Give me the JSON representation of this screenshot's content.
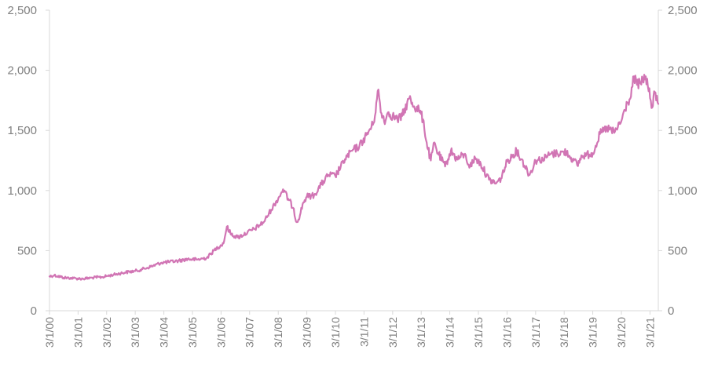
{
  "chart_data": {
    "type": "line",
    "title": "",
    "xlabel": "",
    "ylabel": "",
    "ylim": [
      0,
      2500
    ],
    "grid": false,
    "legend": "none",
    "y_ticks": [
      0,
      500,
      1000,
      1500,
      2000,
      2500
    ],
    "y_tick_labels": [
      "0",
      "500",
      "1,000",
      "1,500",
      "2,000",
      "2,500"
    ],
    "x_ticks": [
      "3/1/00",
      "3/1/01",
      "3/1/02",
      "3/1/03",
      "3/1/04",
      "3/1/05",
      "3/1/06",
      "3/1/07",
      "3/1/08",
      "3/1/09",
      "3/1/10",
      "3/1/11",
      "3/1/12",
      "3/1/13",
      "3/1/14",
      "3/1/15",
      "3/1/16",
      "3/1/17",
      "3/1/18",
      "3/1/19",
      "3/1/20",
      "3/1/21"
    ],
    "xlim": [
      "2000-03-01",
      "2021-06-15"
    ],
    "series": [
      {
        "color": "#d175b4",
        "x": [
          "2000-03-01",
          "2000-05-01",
          "2000-09-01",
          "2001-01-01",
          "2001-05-01",
          "2001-09-01",
          "2002-01-01",
          "2002-06-01",
          "2002-11-01",
          "2003-03-01",
          "2003-06-01",
          "2003-10-01",
          "2004-02-01",
          "2004-05-01",
          "2004-09-01",
          "2005-01-01",
          "2005-05-01",
          "2005-09-01",
          "2006-01-01",
          "2006-04-01",
          "2006-05-15",
          "2006-07-01",
          "2006-10-01",
          "2007-02-01",
          "2007-05-01",
          "2007-09-01",
          "2007-12-01",
          "2008-03-15",
          "2008-05-01",
          "2008-07-15",
          "2008-09-15",
          "2008-10-15",
          "2008-11-15",
          "2009-01-15",
          "2009-03-01",
          "2009-06-01",
          "2009-09-01",
          "2009-12-01",
          "2010-03-01",
          "2010-07-01",
          "2010-10-01",
          "2011-01-01",
          "2011-04-01",
          "2011-07-01",
          "2011-09-01",
          "2011-10-01",
          "2011-12-01",
          "2012-01-01",
          "2012-03-01",
          "2012-05-01",
          "2012-07-01",
          "2012-10-01",
          "2012-12-01",
          "2013-02-01",
          "2013-04-01",
          "2013-05-01",
          "2013-07-01",
          "2013-08-15",
          "2013-10-01",
          "2013-12-31",
          "2014-03-15",
          "2014-06-01",
          "2014-09-01",
          "2014-11-15",
          "2015-01-20",
          "2015-04-01",
          "2015-07-15",
          "2015-10-15",
          "2015-12-15",
          "2016-03-01",
          "2016-07-01",
          "2016-09-01",
          "2016-12-15",
          "2017-03-01",
          "2017-06-01",
          "2017-09-01",
          "2017-12-01",
          "2018-04-01",
          "2018-07-01",
          "2018-08-15",
          "2018-10-15",
          "2019-01-15",
          "2019-03-01",
          "2019-06-01",
          "2019-09-01",
          "2019-12-01",
          "2020-03-01",
          "2020-05-15",
          "2020-07-01",
          "2020-08-07",
          "2020-09-15",
          "2020-11-01",
          "2021-01-05",
          "2021-03-30",
          "2021-05-01",
          "2021-06-15"
        ],
        "y": [
          285,
          295,
          275,
          270,
          265,
          275,
          280,
          300,
          320,
          330,
          345,
          370,
          400,
          405,
          415,
          430,
          425,
          440,
          520,
          560,
          700,
          640,
          610,
          650,
          680,
          740,
          840,
          950,
          1010,
          920,
          850,
          740,
          760,
          900,
          950,
          960,
          1050,
          1130,
          1120,
          1260,
          1330,
          1370,
          1460,
          1560,
          1840,
          1650,
          1580,
          1650,
          1620,
          1590,
          1620,
          1770,
          1700,
          1670,
          1580,
          1420,
          1250,
          1400,
          1310,
          1200,
          1330,
          1260,
          1300,
          1200,
          1270,
          1220,
          1090,
          1060,
          1100,
          1240,
          1330,
          1260,
          1130,
          1250,
          1260,
          1300,
          1310,
          1320,
          1250,
          1210,
          1290,
          1300,
          1310,
          1470,
          1520,
          1480,
          1580,
          1730,
          1780,
          1950,
          1880,
          1890,
          1950,
          1690,
          1820,
          1720
        ]
      }
    ]
  }
}
